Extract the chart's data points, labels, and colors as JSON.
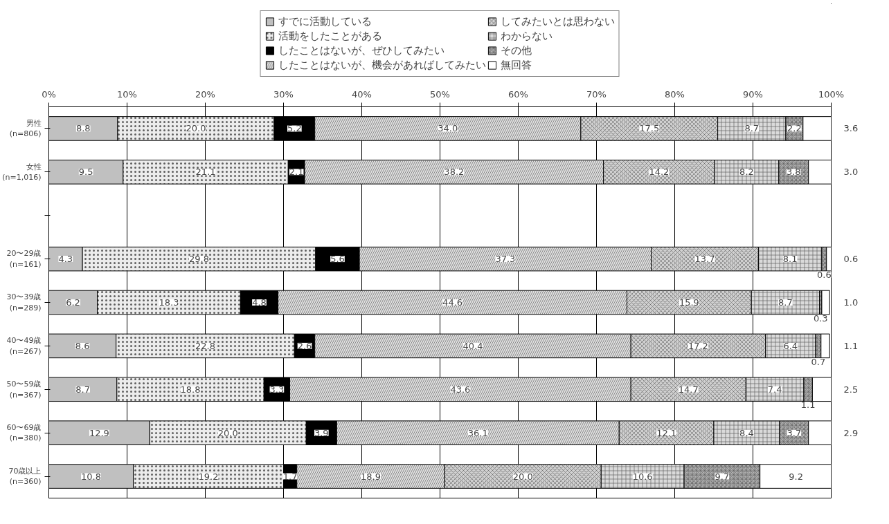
{
  "chart_data": {
    "type": "bar",
    "orientation": "horizontal",
    "stacked": true,
    "categories": [
      "男性\n(n=806)",
      "女性\n(n=1,016)",
      null,
      "20〜29歳\n(n=161)",
      "30〜39歳\n(n=289)",
      "40〜49歳\n(n=267)",
      "50〜59歳\n(n=367)",
      "60〜69歳\n(n=380)",
      "70歳以上\n(n=360)"
    ],
    "series": [
      {
        "name": "すでに活動している",
        "color": "#c0c0c0",
        "values": [
          8.8,
          9.5,
          null,
          4.3,
          6.2,
          8.6,
          8.7,
          12.9,
          10.8
        ],
        "value_labels": [
          "8.8",
          "9.5",
          null,
          "4.3",
          "6.2",
          "8.6",
          "8.7",
          "12.9",
          "10.8"
        ]
      },
      {
        "name": "活動をしたことがある",
        "color": "#ececec",
        "values": [
          20.0,
          21.1,
          null,
          29.8,
          18.3,
          22.8,
          18.8,
          20.0,
          19.2
        ],
        "value_labels": [
          "20.0",
          "21.1",
          null,
          "29.8",
          "18.3",
          "22.8",
          "18.8",
          "20.0",
          "19.2"
        ]
      },
      {
        "name": "したことはないが、ぜひしてみたい",
        "color": "#000000",
        "values": [
          5.2,
          2.1,
          null,
          5.6,
          4.8,
          2.6,
          3.3,
          3.9,
          1.7
        ],
        "value_labels": [
          "5.2",
          "2.1",
          null,
          "5.6",
          "4.8",
          "2.6",
          "3.3",
          "3.9",
          "1.7"
        ]
      },
      {
        "name": "したことはないが、機会があればしてみたい",
        "color": "#e0e0e0",
        "values": [
          34.0,
          38.2,
          null,
          37.3,
          44.6,
          40.4,
          43.6,
          36.1,
          18.9
        ],
        "value_labels": [
          "34.0",
          "38.2",
          null,
          "37.3",
          "44.6",
          "40.4",
          "43.6",
          "36.1",
          "18.9"
        ]
      },
      {
        "name": "してみたいとは思わない",
        "color": "#d0d0d0",
        "values": [
          17.5,
          14.2,
          null,
          13.7,
          15.9,
          17.2,
          14.7,
          12.1,
          20.0
        ],
        "value_labels": [
          "17.5",
          "14.2",
          null,
          "13.7",
          "15.9",
          "17.2",
          "14.7",
          "12.1",
          "20.0"
        ]
      },
      {
        "name": "わからない",
        "color": "#dadada",
        "values": [
          8.7,
          8.2,
          null,
          8.1,
          8.7,
          6.4,
          7.4,
          8.4,
          10.6
        ],
        "value_labels": [
          "8.7",
          "8.2",
          null,
          "8.1",
          "8.7",
          "6.4",
          "7.4",
          "8.4",
          "10.6"
        ]
      },
      {
        "name": "その他",
        "color": "#b0b0b0",
        "values": [
          2.2,
          3.8,
          null,
          0.6,
          0.3,
          0.7,
          1.1,
          3.7,
          9.7
        ],
        "value_labels": [
          "2.2",
          "3.8",
          null,
          "0.6",
          "0.3",
          "0.7",
          "1.1",
          "3.7",
          "9.7"
        ]
      },
      {
        "name": "無回答",
        "color": "#ffffff",
        "values": [
          3.6,
          3.0,
          null,
          0.6,
          1.0,
          1.1,
          2.5,
          2.9,
          9.2
        ],
        "value_labels": [
          "3.6",
          "3.0",
          null,
          "0.6",
          "1.0",
          "1.1",
          "2.5",
          "2.9",
          "9.2"
        ]
      }
    ],
    "xlim": [
      0,
      100
    ],
    "xticks": [
      {
        "value": 0,
        "label": "0%"
      },
      {
        "value": 10,
        "label": "10%"
      },
      {
        "value": 20,
        "label": "20%"
      },
      {
        "value": 30,
        "label": "30%"
      },
      {
        "value": 40,
        "label": "40%"
      },
      {
        "value": 50,
        "label": "50%"
      },
      {
        "value": 60,
        "label": "60%"
      },
      {
        "value": 70,
        "label": "70%"
      },
      {
        "value": 80,
        "label": "80%"
      },
      {
        "value": 90,
        "label": "90%"
      },
      {
        "value": 100,
        "label": "100%"
      }
    ],
    "grid": "x",
    "legend": "top"
  }
}
